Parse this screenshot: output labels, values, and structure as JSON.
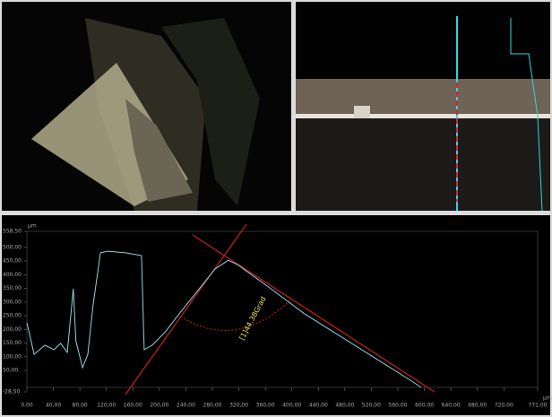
{
  "chart_data": {
    "type": "line",
    "x_unit": "µm",
    "y_unit": "µm",
    "annotation": "[1]44.38Grad",
    "color": "#8fd3e0",
    "xlim": [
      0,
      771
    ],
    "ylim": [
      -28.5,
      558.5
    ],
    "xticks": [
      {
        "value": 0,
        "label": "0,00"
      },
      {
        "value": 40,
        "label": "40,00"
      },
      {
        "value": 80,
        "label": "80,00"
      },
      {
        "value": 120,
        "label": "120,00"
      },
      {
        "value": 160,
        "label": "160,00"
      },
      {
        "value": 200,
        "label": "200,00"
      },
      {
        "value": 240,
        "label": "240,00"
      },
      {
        "value": 280,
        "label": "280,00"
      },
      {
        "value": 320,
        "label": "320,00"
      },
      {
        "value": 360,
        "label": "360,00"
      },
      {
        "value": 400,
        "label": "400,00"
      },
      {
        "value": 440,
        "label": "440,00"
      },
      {
        "value": 480,
        "label": "480,00"
      },
      {
        "value": 520,
        "label": "520,00"
      },
      {
        "value": 560,
        "label": "560,00"
      },
      {
        "value": 600,
        "label": "600,00"
      },
      {
        "value": 640,
        "label": "640,00"
      },
      {
        "value": 680,
        "label": "680,00"
      },
      {
        "value": 720,
        "label": "720,00"
      },
      {
        "value": 771,
        "label": "771,00"
      }
    ],
    "yticks": [
      {
        "value": -28.5,
        "label": "-28,50"
      },
      {
        "value": 50,
        "label": "50,00"
      },
      {
        "value": 100,
        "label": "100,00"
      },
      {
        "value": 150,
        "label": "150,00"
      },
      {
        "value": 200,
        "label": "200,00"
      },
      {
        "value": 250,
        "label": "250,00"
      },
      {
        "value": 300,
        "label": "300,00"
      },
      {
        "value": 350,
        "label": "350,00"
      },
      {
        "value": 400,
        "label": "400,00"
      },
      {
        "value": 450,
        "label": "450,00"
      },
      {
        "value": 500,
        "label": "500,00"
      },
      {
        "value": 558.5,
        "label": "558,50"
      }
    ],
    "x": [
      0,
      11,
      27,
      41,
      51,
      61,
      70,
      74,
      84,
      92,
      100,
      111,
      122,
      149,
      173,
      177,
      189,
      209,
      230,
      257,
      284,
      304,
      318,
      365,
      419,
      473,
      527,
      581,
      595
    ],
    "values": [
      224,
      109,
      142,
      126,
      149,
      116,
      349,
      158,
      60,
      109,
      290,
      480,
      486,
      480,
      470,
      126,
      142,
      191,
      257,
      339,
      421,
      453,
      437,
      355,
      257,
      175,
      93,
      11,
      -12
    ]
  }
}
